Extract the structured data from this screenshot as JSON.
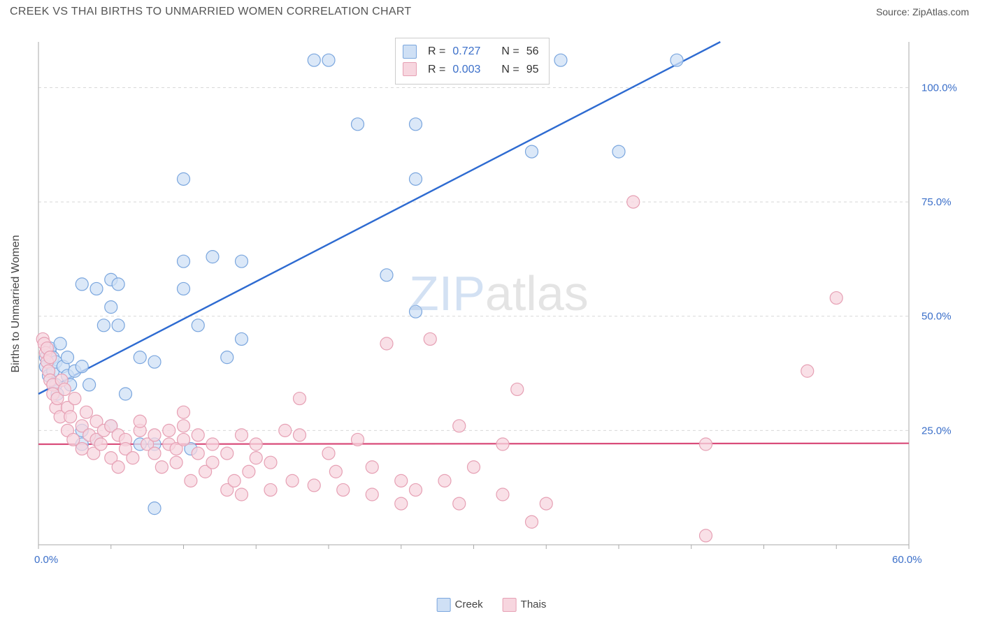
{
  "header": {
    "title": "CREEK VS THAI BIRTHS TO UNMARRIED WOMEN CORRELATION CHART",
    "source": "Source: ZipAtlas.com"
  },
  "chart": {
    "type": "scatter",
    "ylabel": "Births to Unmarried Women",
    "xlim": [
      0,
      60
    ],
    "ylim": [
      0,
      110
    ],
    "xticks": [
      0,
      5,
      10,
      15,
      20,
      25,
      30,
      35,
      40,
      45,
      50,
      55,
      60
    ],
    "xtick_labels": {
      "0": "0.0%",
      "60": "60.0%"
    },
    "ytick_vals": [
      25,
      50,
      75,
      100
    ],
    "ytick_labels": [
      "25.0%",
      "50.0%",
      "75.0%",
      "100.0%"
    ],
    "grid_color": "#d8d8d8",
    "axis_color": "#aaaaaa",
    "background": "#ffffff",
    "marker_radius": 9,
    "marker_stroke_width": 1.2,
    "series": [
      {
        "name": "Creek",
        "fill": "#cfe0f5",
        "stroke": "#7aa6de",
        "line_color": "#2e6bd1",
        "line_width": 2.4,
        "R": "0.727",
        "N": "56",
        "trend": {
          "x1": 0,
          "y1": 33,
          "x2": 47,
          "y2": 110
        },
        "points": [
          [
            0.5,
            41
          ],
          [
            0.5,
            39
          ],
          [
            0.7,
            37
          ],
          [
            0.8,
            42
          ],
          [
            0.8,
            43
          ],
          [
            1,
            38
          ],
          [
            1,
            41
          ],
          [
            1.2,
            35
          ],
          [
            1.2,
            40
          ],
          [
            1.3,
            33
          ],
          [
            1.5,
            44
          ],
          [
            1.7,
            39
          ],
          [
            2,
            41
          ],
          [
            2,
            37
          ],
          [
            2.2,
            35
          ],
          [
            2.5,
            38
          ],
          [
            3,
            57
          ],
          [
            3,
            25
          ],
          [
            3,
            22
          ],
          [
            3,
            39
          ],
          [
            3.5,
            35
          ],
          [
            4,
            23
          ],
          [
            4,
            56
          ],
          [
            4.5,
            48
          ],
          [
            5,
            26
          ],
          [
            5,
            52
          ],
          [
            5,
            58
          ],
          [
            5.5,
            48
          ],
          [
            5.5,
            57
          ],
          [
            6,
            33
          ],
          [
            7,
            22
          ],
          [
            7,
            41
          ],
          [
            8,
            8
          ],
          [
            8,
            22
          ],
          [
            8,
            40
          ],
          [
            10,
            56
          ],
          [
            10,
            62
          ],
          [
            10,
            80
          ],
          [
            10.5,
            21
          ],
          [
            11,
            48
          ],
          [
            12,
            63
          ],
          [
            13,
            41
          ],
          [
            14,
            62
          ],
          [
            14,
            45
          ],
          [
            19,
            106
          ],
          [
            20,
            106
          ],
          [
            22,
            92
          ],
          [
            24,
            59
          ],
          [
            26,
            51
          ],
          [
            26,
            80
          ],
          [
            26,
            92
          ],
          [
            29,
            104
          ],
          [
            34,
            86
          ],
          [
            36,
            106
          ],
          [
            40,
            86
          ],
          [
            44,
            106
          ]
        ]
      },
      {
        "name": "Thais",
        "fill": "#f7d6df",
        "stroke": "#e6a0b4",
        "line_color": "#d94c7a",
        "line_width": 2.2,
        "R": "0.003",
        "N": "95",
        "trend": {
          "x1": 0,
          "y1": 22,
          "x2": 60,
          "y2": 22.2
        },
        "points": [
          [
            0.3,
            45
          ],
          [
            0.4,
            44
          ],
          [
            0.5,
            42
          ],
          [
            0.6,
            40
          ],
          [
            0.6,
            43
          ],
          [
            0.7,
            38
          ],
          [
            0.8,
            36
          ],
          [
            0.8,
            41
          ],
          [
            1,
            35
          ],
          [
            1,
            33
          ],
          [
            1.2,
            30
          ],
          [
            1.3,
            32
          ],
          [
            1.5,
            28
          ],
          [
            1.6,
            36
          ],
          [
            1.8,
            34
          ],
          [
            2,
            30
          ],
          [
            2,
            25
          ],
          [
            2.2,
            28
          ],
          [
            2.4,
            23
          ],
          [
            2.5,
            32
          ],
          [
            3,
            26
          ],
          [
            3,
            21
          ],
          [
            3.3,
            29
          ],
          [
            3.5,
            24
          ],
          [
            3.8,
            20
          ],
          [
            4,
            23
          ],
          [
            4,
            27
          ],
          [
            4.3,
            22
          ],
          [
            4.5,
            25
          ],
          [
            5,
            26
          ],
          [
            5,
            19
          ],
          [
            5.5,
            24
          ],
          [
            5.5,
            17
          ],
          [
            6,
            23
          ],
          [
            6,
            21
          ],
          [
            6.5,
            19
          ],
          [
            7,
            25
          ],
          [
            7,
            27
          ],
          [
            7.5,
            22
          ],
          [
            8,
            24
          ],
          [
            8,
            20
          ],
          [
            8.5,
            17
          ],
          [
            9,
            22
          ],
          [
            9,
            25
          ],
          [
            9.5,
            21
          ],
          [
            9.5,
            18
          ],
          [
            10,
            23
          ],
          [
            10,
            26
          ],
          [
            10,
            29
          ],
          [
            10.5,
            14
          ],
          [
            11,
            20
          ],
          [
            11,
            24
          ],
          [
            11.5,
            16
          ],
          [
            12,
            22
          ],
          [
            12,
            18
          ],
          [
            13,
            12
          ],
          [
            13,
            20
          ],
          [
            13.5,
            14
          ],
          [
            14,
            24
          ],
          [
            14,
            11
          ],
          [
            14.5,
            16
          ],
          [
            15,
            19
          ],
          [
            15,
            22
          ],
          [
            16,
            12
          ],
          [
            16,
            18
          ],
          [
            17,
            25
          ],
          [
            17.5,
            14
          ],
          [
            18,
            24
          ],
          [
            18,
            32
          ],
          [
            19,
            13
          ],
          [
            20,
            20
          ],
          [
            20.5,
            16
          ],
          [
            21,
            12
          ],
          [
            22,
            23
          ],
          [
            23,
            17
          ],
          [
            23,
            11
          ],
          [
            24,
            44
          ],
          [
            25,
            14
          ],
          [
            25,
            9
          ],
          [
            26,
            12
          ],
          [
            27,
            45
          ],
          [
            28,
            14
          ],
          [
            29,
            26
          ],
          [
            29,
            9
          ],
          [
            30,
            17
          ],
          [
            32,
            11
          ],
          [
            32,
            22
          ],
          [
            33,
            34
          ],
          [
            34,
            5
          ],
          [
            35,
            9
          ],
          [
            41,
            75
          ],
          [
            46,
            22
          ],
          [
            46,
            2
          ],
          [
            53,
            38
          ],
          [
            55,
            54
          ]
        ]
      }
    ],
    "legend": {
      "series1": "Creek",
      "series2": "Thais",
      "swatch1_fill": "#cfe0f5",
      "swatch1_stroke": "#7aa6de",
      "swatch2_fill": "#f7d6df",
      "swatch2_stroke": "#e6a0b4"
    },
    "stat_box": {
      "row1_r_label": "R =",
      "row1_n_label": "N =",
      "row2_r_label": "R =",
      "row2_n_label": "N ="
    },
    "watermark": {
      "zip": "ZIP",
      "atlas": "atlas"
    }
  }
}
